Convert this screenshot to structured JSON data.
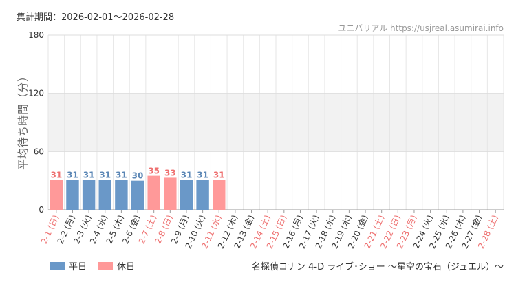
{
  "header": {
    "period_label": "集計期間：2026-02-01～2026-02-28",
    "site_label": "ユニバリアル https://usjreal.asumirai.info"
  },
  "footer": {
    "attraction": "名探偵コナン 4-D ライブ･ショー ～星空の宝石（ジュエル）～"
  },
  "colors": {
    "weekday": "#6a98c8",
    "holiday": "#ff9999",
    "weekday_text": "#5a86b5",
    "holiday_text": "#ee6f6f"
  },
  "chart_data": {
    "type": "bar",
    "ylabel": "平均待ち時間（分）",
    "ylim": [
      0,
      180
    ],
    "yticks": [
      0,
      60,
      120,
      180
    ],
    "shaded_band": [
      60,
      120
    ],
    "grid": true,
    "legend_position": "bottom-left",
    "series": [
      {
        "name": "平日",
        "key": "weekday"
      },
      {
        "name": "休日",
        "key": "holiday"
      }
    ],
    "categories": [
      {
        "label": "2-1 (日)",
        "value": 31,
        "type": "holiday"
      },
      {
        "label": "2-2 (月)",
        "value": 31,
        "type": "weekday"
      },
      {
        "label": "2-3 (火)",
        "value": 31,
        "type": "weekday"
      },
      {
        "label": "2-4 (水)",
        "value": 31,
        "type": "weekday"
      },
      {
        "label": "2-5 (木)",
        "value": 31,
        "type": "weekday"
      },
      {
        "label": "2-6 (金)",
        "value": 30,
        "type": "weekday"
      },
      {
        "label": "2-7 (土)",
        "value": 35,
        "type": "holiday"
      },
      {
        "label": "2-8 (日)",
        "value": 33,
        "type": "holiday"
      },
      {
        "label": "2-9 (月)",
        "value": 31,
        "type": "weekday"
      },
      {
        "label": "2-10 (火)",
        "value": 31,
        "type": "weekday"
      },
      {
        "label": "2-11 (水)",
        "value": 31,
        "type": "holiday"
      },
      {
        "label": "2-12 (木)",
        "value": null,
        "type": "weekday"
      },
      {
        "label": "2-13 (金)",
        "value": null,
        "type": "weekday"
      },
      {
        "label": "2-14 (土)",
        "value": null,
        "type": "holiday"
      },
      {
        "label": "2-15 (日)",
        "value": null,
        "type": "holiday"
      },
      {
        "label": "2-16 (月)",
        "value": null,
        "type": "weekday"
      },
      {
        "label": "2-17 (火)",
        "value": null,
        "type": "weekday"
      },
      {
        "label": "2-18 (水)",
        "value": null,
        "type": "weekday"
      },
      {
        "label": "2-19 (木)",
        "value": null,
        "type": "weekday"
      },
      {
        "label": "2-20 (金)",
        "value": null,
        "type": "weekday"
      },
      {
        "label": "2-21 (土)",
        "value": null,
        "type": "holiday"
      },
      {
        "label": "2-22 (日)",
        "value": null,
        "type": "holiday"
      },
      {
        "label": "2-23 (月)",
        "value": null,
        "type": "holiday"
      },
      {
        "label": "2-24 (火)",
        "value": null,
        "type": "weekday"
      },
      {
        "label": "2-25 (水)",
        "value": null,
        "type": "weekday"
      },
      {
        "label": "2-26 (木)",
        "value": null,
        "type": "weekday"
      },
      {
        "label": "2-27 (金)",
        "value": null,
        "type": "weekday"
      },
      {
        "label": "2-28 (土)",
        "value": null,
        "type": "holiday"
      }
    ]
  }
}
